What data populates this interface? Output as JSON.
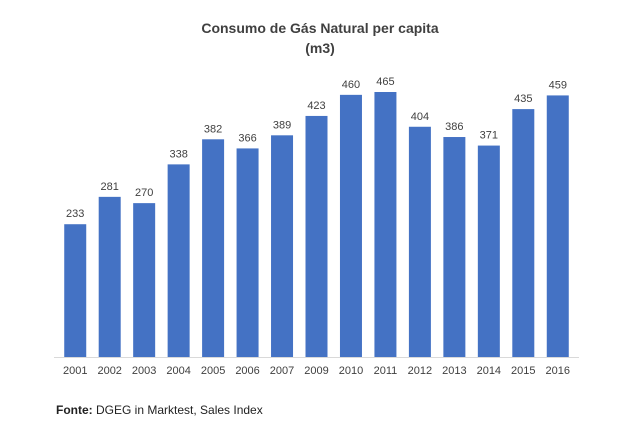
{
  "chart_data": {
    "type": "bar",
    "title": "Consumo de Gás Natural per capita",
    "subtitle": "(m3)",
    "categories": [
      "2001",
      "2002",
      "2003",
      "2004",
      "2005",
      "2006",
      "2007",
      "2009",
      "2010",
      "2011",
      "2012",
      "2013",
      "2014",
      "2015",
      "2016"
    ],
    "values": [
      233,
      281,
      270,
      338,
      382,
      366,
      389,
      423,
      460,
      465,
      404,
      386,
      371,
      435,
      459
    ],
    "ylim": [
      0,
      465
    ],
    "grid": false,
    "color": "#4472C4"
  },
  "source": {
    "label": "Fonte:",
    "text": "DGEG in Marktest, Sales Index"
  }
}
